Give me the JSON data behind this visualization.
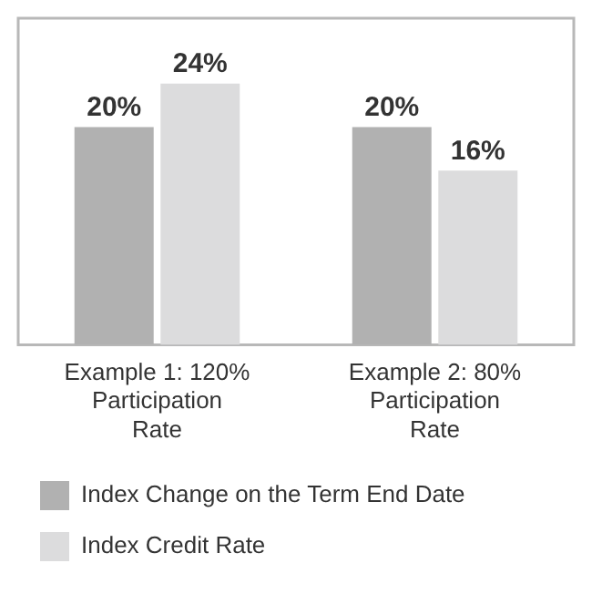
{
  "chart_data": {
    "type": "bar",
    "categories": [
      "Example 1: 120% Participation Rate",
      "Example 2: 80% Participation Rate"
    ],
    "series": [
      {
        "name": "Index Change on the Term End Date",
        "color": "#b1b1b1",
        "values": [
          20,
          20
        ],
        "value_labels": [
          "20%",
          "20%"
        ]
      },
      {
        "name": "Index Credit Rate",
        "color": "#dcdcdd",
        "values": [
          24,
          16
        ],
        "value_labels": [
          "24%",
          "16%"
        ]
      }
    ],
    "grid": false,
    "legend": "bottom left"
  }
}
